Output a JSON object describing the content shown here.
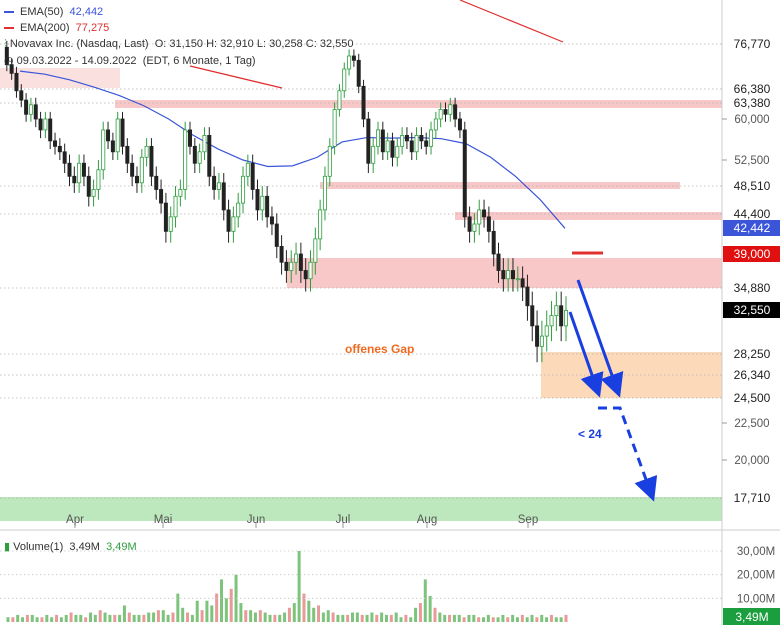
{
  "header": {
    "ema50_label": "EMA(50)",
    "ema50_value": "42,442",
    "ema200_label": "EMA(200)",
    "ema200_value": "77,275",
    "instrument": "Novavax Inc. (Nasdaq, Last)",
    "ohlc": "O: 31,150  H: 32,910  L: 30,258  C: 32,550",
    "range": "09.03.2022 - 14.09.2022",
    "range_meta": "(EDT, 6 Monate, 1 Tag)"
  },
  "volume_panel": {
    "label": "Volume(1)",
    "value_a": "3,49M",
    "value_b": "3,49M",
    "ticks": [
      "30,00M",
      "20,00M",
      "10,00M"
    ],
    "current": "3,49M"
  },
  "colors": {
    "up": "#2e9e3e",
    "down": "#222222",
    "ema50": "#3a55d8",
    "ema200": "#e03030",
    "zone_red": "#f8c8c8",
    "zone_orange": "#fcd9b8",
    "zone_green": "#bde8bd",
    "arrow": "#1a3fe0"
  },
  "chart_data": {
    "type": "candlestick",
    "x_ticks": [
      "Apr",
      "Mai",
      "Jun",
      "Jul",
      "Aug",
      "Sep"
    ],
    "y_ticks": [
      60.0,
      52.5,
      22.5,
      20.0
    ],
    "y_tick_labels": [
      "60,000",
      "52,500",
      "22,500",
      "20,000"
    ],
    "levels": [
      {
        "value": 76.77,
        "label": "76,770",
        "style": "plain"
      },
      {
        "value": 66.38,
        "label": "66,380",
        "style": "plain"
      },
      {
        "value": 63.38,
        "label": "63,380",
        "style": "plain"
      },
      {
        "value": 48.51,
        "label": "48,510",
        "style": "plain"
      },
      {
        "value": 44.4,
        "label": "44,400",
        "style": "plain"
      },
      {
        "value": 42.442,
        "label": "42,442",
        "style": "ema50"
      },
      {
        "value": 39.0,
        "label": "39,000",
        "style": "red"
      },
      {
        "value": 34.88,
        "label": "34,880",
        "style": "plain"
      },
      {
        "value": 32.55,
        "label": "32,550",
        "style": "last"
      },
      {
        "value": 28.25,
        "label": "28,250",
        "style": "plain"
      },
      {
        "value": 26.34,
        "label": "26,340",
        "style": "plain"
      },
      {
        "value": 24.5,
        "label": "24,500",
        "style": "plain"
      },
      {
        "value": 17.71,
        "label": "17,710",
        "style": "plain"
      }
    ],
    "annotations": [
      {
        "text": "offenes Gap"
      },
      {
        "text": "< 24"
      }
    ],
    "ema50_series": [
      70.5,
      69.8,
      68.5,
      66.8,
      65.0,
      62.8,
      60.0,
      57.0,
      54.5,
      52.5,
      51.5,
      51.6,
      53.0,
      55.8,
      56.6,
      56.5,
      56.6,
      56.4,
      55.5,
      53.0,
      50.0,
      46.5,
      42.4
    ],
    "ema200_series": [
      90.0,
      85.0,
      79.5,
      77.3
    ],
    "last": {
      "open": 31.15,
      "high": 32.91,
      "low": 30.258,
      "close": 32.55
    }
  }
}
